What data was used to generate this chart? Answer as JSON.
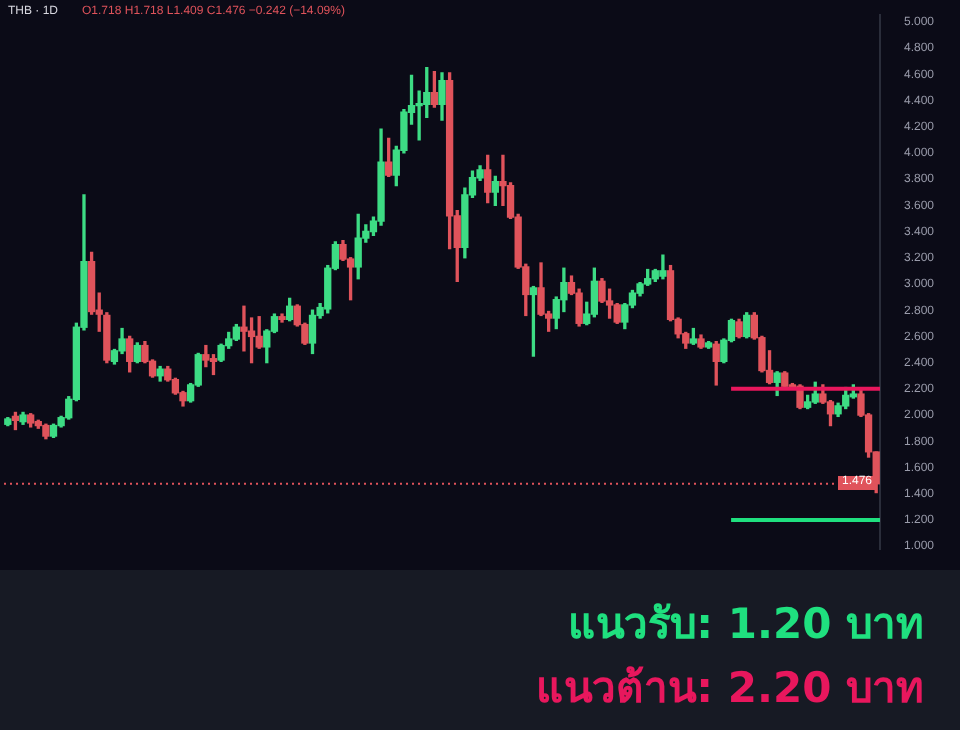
{
  "chart_data": {
    "type": "candlestick",
    "title": "THB · 1D",
    "subtitle": "O1.718 H1.718 L1.409 C1.476 −0.242 (−14.09%)",
    "categories": [
      null,
      null,
      null,
      null,
      null,
      null,
      null,
      null,
      null,
      null,
      null,
      null,
      null,
      null,
      null,
      null,
      null,
      null,
      null,
      null,
      null,
      null,
      null,
      null,
      null,
      null,
      null,
      null,
      null,
      null,
      null,
      null,
      null,
      null,
      null,
      null,
      null,
      null,
      null,
      null,
      null,
      null,
      null,
      null,
      null,
      null,
      null,
      null,
      null,
      null,
      null,
      null,
      null,
      null,
      null,
      null,
      null,
      null,
      null,
      null,
      null,
      null,
      null,
      null,
      null,
      null,
      null,
      null,
      null,
      null,
      null,
      null,
      null,
      null,
      null,
      null,
      null,
      null,
      null,
      null,
      null,
      null,
      null,
      null,
      null,
      null,
      null,
      null,
      null,
      null,
      null,
      null,
      null,
      null,
      null,
      null,
      null,
      null,
      null,
      null,
      null,
      null,
      null,
      null,
      null,
      null,
      null,
      null,
      null,
      null,
      null,
      null,
      null,
      null,
      null
    ],
    "ohlc": [
      [
        1.93,
        1.98,
        1.92,
        1.97
      ],
      [
        1.99,
        2.02,
        1.89,
        1.96
      ],
      [
        1.95,
        2.02,
        1.93,
        2.0
      ],
      [
        2.0,
        2.01,
        1.91,
        1.94
      ],
      [
        1.95,
        1.96,
        1.9,
        1.92
      ],
      [
        1.92,
        1.93,
        1.82,
        1.84
      ],
      [
        1.84,
        1.93,
        1.83,
        1.92
      ],
      [
        1.92,
        1.99,
        1.91,
        1.98
      ],
      [
        1.98,
        2.14,
        1.97,
        2.12
      ],
      [
        2.12,
        2.7,
        2.11,
        2.67
      ],
      [
        2.67,
        3.68,
        2.65,
        3.17
      ],
      [
        3.17,
        3.24,
        2.77,
        2.79
      ],
      [
        2.8,
        2.93,
        2.64,
        2.77
      ],
      [
        2.76,
        2.78,
        2.4,
        2.42
      ],
      [
        2.41,
        2.5,
        2.39,
        2.49
      ],
      [
        2.49,
        2.66,
        2.47,
        2.58
      ],
      [
        2.58,
        2.6,
        2.33,
        2.41
      ],
      [
        2.41,
        2.55,
        2.4,
        2.53
      ],
      [
        2.53,
        2.56,
        2.4,
        2.41
      ],
      [
        2.41,
        2.42,
        2.29,
        2.3
      ],
      [
        2.3,
        2.37,
        2.26,
        2.35
      ],
      [
        2.35,
        2.37,
        2.26,
        2.27
      ],
      [
        2.27,
        2.28,
        2.16,
        2.17
      ],
      [
        2.17,
        2.18,
        2.07,
        2.11
      ],
      [
        2.11,
        2.24,
        2.1,
        2.23
      ],
      [
        2.23,
        2.47,
        2.22,
        2.46
      ],
      [
        2.46,
        2.53,
        2.37,
        2.42
      ],
      [
        2.43,
        2.46,
        2.31,
        2.41
      ],
      [
        2.42,
        2.54,
        2.41,
        2.53
      ],
      [
        2.53,
        2.63,
        2.51,
        2.58
      ],
      [
        2.58,
        2.69,
        2.57,
        2.67
      ],
      [
        2.67,
        2.83,
        2.49,
        2.64
      ],
      [
        2.64,
        2.74,
        2.4,
        2.6
      ],
      [
        2.6,
        2.75,
        2.51,
        2.52
      ],
      [
        2.52,
        2.65,
        2.4,
        2.64
      ],
      [
        2.64,
        2.77,
        2.63,
        2.75
      ],
      [
        2.75,
        2.77,
        2.71,
        2.73
      ],
      [
        2.73,
        2.89,
        2.72,
        2.83
      ],
      [
        2.83,
        2.84,
        2.68,
        2.69
      ],
      [
        2.69,
        2.7,
        2.54,
        2.55
      ],
      [
        2.55,
        2.8,
        2.47,
        2.76
      ],
      [
        2.76,
        2.85,
        2.74,
        2.82
      ],
      [
        2.81,
        3.14,
        2.78,
        3.12
      ],
      [
        3.12,
        3.32,
        3.11,
        3.3
      ],
      [
        3.3,
        3.33,
        3.18,
        3.19
      ],
      [
        3.19,
        3.2,
        2.88,
        3.13
      ],
      [
        3.13,
        3.53,
        3.04,
        3.35
      ],
      [
        3.35,
        3.45,
        3.32,
        3.4
      ],
      [
        3.4,
        3.51,
        3.37,
        3.48
      ],
      [
        3.48,
        4.18,
        3.45,
        3.93
      ],
      [
        3.93,
        4.11,
        3.82,
        3.83
      ],
      [
        3.83,
        4.05,
        3.75,
        4.02
      ],
      [
        4.02,
        4.33,
        4.0,
        4.31
      ],
      [
        4.31,
        4.59,
        4.22,
        4.36
      ],
      [
        4.36,
        4.47,
        4.1,
        4.37
      ],
      [
        4.37,
        4.65,
        4.27,
        4.46
      ],
      [
        4.46,
        4.62,
        4.35,
        4.37
      ],
      [
        4.37,
        4.61,
        4.25,
        4.55
      ],
      [
        4.55,
        4.61,
        3.27,
        3.52
      ],
      [
        3.52,
        3.56,
        3.02,
        3.28
      ],
      [
        3.28,
        3.73,
        3.2,
        3.68
      ],
      [
        3.68,
        3.86,
        3.66,
        3.81
      ],
      [
        3.81,
        3.9,
        3.79,
        3.87
      ],
      [
        3.87,
        3.98,
        3.62,
        3.7
      ],
      [
        3.7,
        3.82,
        3.6,
        3.78
      ],
      [
        3.78,
        3.98,
        3.6,
        3.75
      ],
      [
        3.75,
        3.77,
        3.5,
        3.51
      ],
      [
        3.51,
        3.53,
        3.12,
        3.13
      ],
      [
        3.13,
        3.15,
        2.76,
        2.92
      ],
      [
        2.92,
        2.98,
        2.45,
        2.97
      ],
      [
        2.97,
        3.16,
        2.76,
        2.77
      ],
      [
        2.77,
        2.79,
        2.64,
        2.74
      ],
      [
        2.74,
        2.9,
        2.66,
        2.88
      ],
      [
        2.88,
        3.12,
        2.79,
        3.01
      ],
      [
        3.01,
        3.06,
        2.92,
        2.93
      ],
      [
        2.93,
        2.96,
        2.68,
        2.7
      ],
      [
        2.7,
        2.86,
        2.69,
        2.77
      ],
      [
        2.77,
        3.12,
        2.75,
        3.02
      ],
      [
        3.02,
        3.04,
        2.86,
        2.87
      ],
      [
        2.87,
        2.96,
        2.74,
        2.84
      ],
      [
        2.84,
        2.85,
        2.7,
        2.71
      ],
      [
        2.71,
        2.85,
        2.66,
        2.84
      ],
      [
        2.84,
        2.95,
        2.82,
        2.93
      ],
      [
        2.93,
        3.01,
        2.91,
        3.0
      ],
      [
        3.0,
        3.11,
        2.99,
        3.04
      ],
      [
        3.04,
        3.11,
        3.02,
        3.1
      ],
      [
        3.06,
        3.22,
        3.04,
        3.1
      ],
      [
        3.1,
        3.14,
        2.72,
        2.73
      ],
      [
        2.73,
        2.74,
        2.59,
        2.62
      ],
      [
        2.62,
        2.63,
        2.51,
        2.55
      ],
      [
        2.55,
        2.66,
        2.54,
        2.58
      ],
      [
        2.58,
        2.61,
        2.51,
        2.52
      ],
      [
        2.52,
        2.56,
        2.51,
        2.55
      ],
      [
        2.54,
        2.56,
        2.23,
        2.41
      ],
      [
        2.41,
        2.58,
        2.4,
        2.57
      ],
      [
        2.57,
        2.73,
        2.56,
        2.72
      ],
      [
        2.71,
        2.73,
        2.59,
        2.6
      ],
      [
        2.6,
        2.78,
        2.59,
        2.76
      ],
      [
        2.76,
        2.78,
        2.58,
        2.59
      ],
      [
        2.59,
        2.6,
        2.33,
        2.34
      ],
      [
        2.34,
        2.49,
        2.24,
        2.25
      ],
      [
        2.25,
        2.33,
        2.15,
        2.32
      ],
      [
        2.32,
        2.33,
        2.21,
        2.22
      ],
      [
        2.23,
        2.24,
        2.2,
        2.21
      ],
      [
        2.22,
        2.23,
        2.05,
        2.06
      ],
      [
        2.06,
        2.15,
        2.05,
        2.1
      ],
      [
        2.1,
        2.25,
        2.09,
        2.16
      ],
      [
        2.16,
        2.23,
        2.09,
        2.1
      ],
      [
        2.1,
        2.11,
        1.92,
        2.01
      ],
      [
        2.01,
        2.09,
        1.99,
        2.07
      ],
      [
        2.07,
        2.21,
        2.05,
        2.15
      ],
      [
        2.14,
        2.23,
        2.13,
        2.16
      ],
      [
        2.16,
        2.2,
        1.99,
        2.0
      ],
      [
        2.0,
        2.01,
        1.68,
        1.72
      ],
      [
        1.718,
        1.718,
        1.409,
        1.476
      ]
    ],
    "ylim": [
      0.98,
      5.05
    ],
    "yticks": [
      {
        "value": 1.0,
        "label": "1.000"
      },
      {
        "value": 1.2,
        "label": "1.200"
      },
      {
        "value": 1.4,
        "label": "1.400"
      },
      {
        "value": 1.6,
        "label": "1.600"
      },
      {
        "value": 1.8,
        "label": "1.800"
      },
      {
        "value": 2.0,
        "label": "2.000"
      },
      {
        "value": 2.2,
        "label": "2.200"
      },
      {
        "value": 2.4,
        "label": "2.400"
      },
      {
        "value": 2.6,
        "label": "2.600"
      },
      {
        "value": 2.8,
        "label": "2.800"
      },
      {
        "value": 3.0,
        "label": "3.000"
      },
      {
        "value": 3.2,
        "label": "3.200"
      },
      {
        "value": 3.4,
        "label": "3.400"
      },
      {
        "value": 3.6,
        "label": "3.600"
      },
      {
        "value": 3.8,
        "label": "3.800"
      },
      {
        "value": 4.0,
        "label": "4.000"
      },
      {
        "value": 4.2,
        "label": "4.200"
      },
      {
        "value": 4.4,
        "label": "4.400"
      },
      {
        "value": 4.6,
        "label": "4.600"
      },
      {
        "value": 4.8,
        "label": "4.800"
      },
      {
        "value": 5.0,
        "label": "5.000"
      }
    ],
    "ref_lines": [
      {
        "axis": "y",
        "value": 2.2,
        "label": "แนวต้าน: 2.20 บาท",
        "color": "#e8175d"
      },
      {
        "axis": "y",
        "value": 1.2,
        "label": "แนวรับ: 1.20 บาท",
        "color": "#1fe07f"
      },
      {
        "axis": "y",
        "value": 1.476,
        "label": "1.476",
        "color": "#e0535b",
        "line_style": "dotted"
      }
    ],
    "tick_labels": "y",
    "grid": false,
    "legend": false
  }
}
